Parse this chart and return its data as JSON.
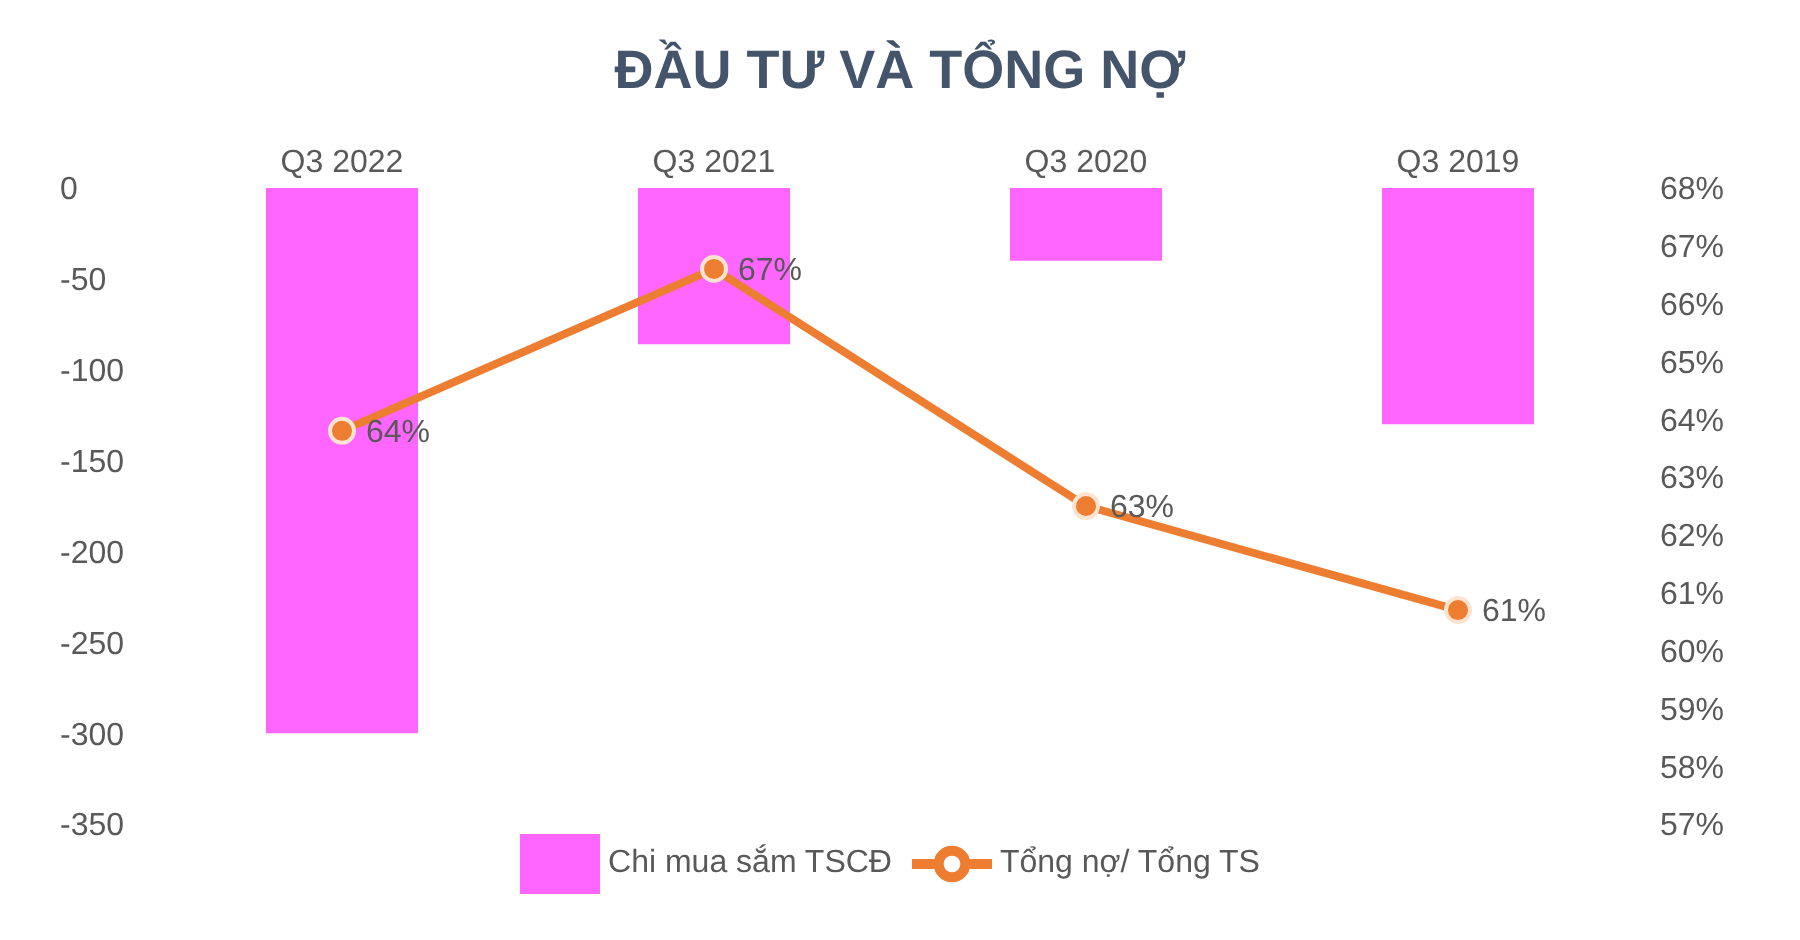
{
  "chart_data": {
    "type": "bar",
    "title": "ĐẦU TƯ VÀ TỔNG NỢ",
    "categories": [
      "Q3 2022",
      "Q3 2021",
      "Q3 2020",
      "Q3 2019"
    ],
    "series": [
      {
        "name": "Chi mua sắm TSCĐ",
        "color": "#ff66ff",
        "values": [
          -300,
          -86,
          -40,
          -130
        ]
      },
      {
        "name": "Tổng nợ/ Tổng TS",
        "type": "line",
        "axis": "y2",
        "color": "#ed7d31",
        "values": [
          63.8,
          66.6,
          62.5,
          60.7
        ],
        "value_labels": [
          "64%",
          "67%",
          "63%",
          "61%"
        ]
      }
    ],
    "ylim": [
      -350,
      0
    ],
    "yticks": [
      -350,
      -300,
      -250,
      -200,
      -150,
      -100,
      -50,
      0
    ],
    "y2lim": [
      57,
      68
    ],
    "y2ticks": [
      {
        "value": 57,
        "label": "57%"
      },
      {
        "value": 58,
        "label": "58%"
      },
      {
        "value": 59,
        "label": "59%"
      },
      {
        "value": 60,
        "label": "60%"
      },
      {
        "value": 61,
        "label": "61%"
      },
      {
        "value": 62,
        "label": "62%"
      },
      {
        "value": 63,
        "label": "63%"
      },
      {
        "value": 64,
        "label": "64%"
      },
      {
        "value": 65,
        "label": "65%"
      },
      {
        "value": 66,
        "label": "66%"
      },
      {
        "value": 67,
        "label": "67%"
      },
      {
        "value": 68,
        "label": "68%"
      }
    ],
    "legend": "bottom",
    "marker": "circle"
  }
}
